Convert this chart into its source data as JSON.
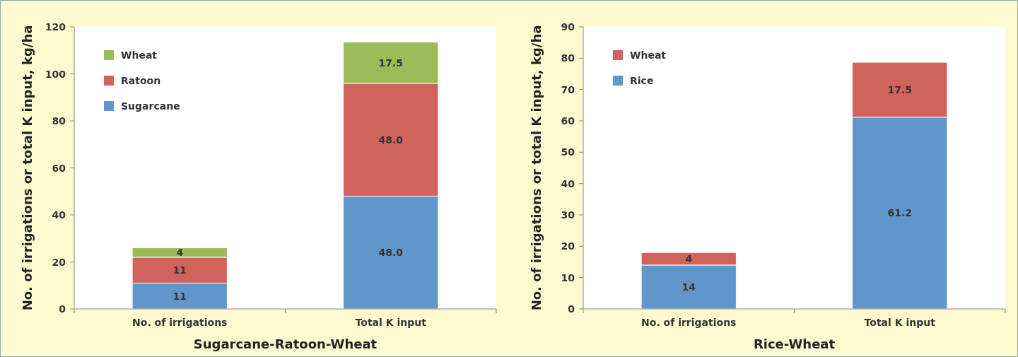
{
  "chart_data": [
    {
      "type": "bar",
      "stacked": true,
      "categories": [
        "No. of irrigations",
        "Total K input"
      ],
      "xlabel": "Sugarcane-Ratoon-Wheat",
      "ylabel": "No. of irrigations or total K input, kg/ha",
      "ylim": [
        0,
        120
      ],
      "yticks": [
        0,
        20,
        40,
        60,
        80,
        100,
        120
      ],
      "legend": "top left",
      "grid": false,
      "series": [
        {
          "name": "Sugarcane",
          "color": "#6096c9",
          "values": [
            11,
            48.0
          ],
          "value_labels": [
            "11",
            "48.0"
          ]
        },
        {
          "name": "Ratoon",
          "color": "#d0645c",
          "values": [
            11,
            48.0
          ],
          "value_labels": [
            "11",
            "48.0"
          ]
        },
        {
          "name": "Wheat",
          "color": "#9bbb59",
          "values": [
            4,
            17.5
          ],
          "value_labels": [
            "4",
            "17.5"
          ]
        }
      ]
    },
    {
      "type": "bar",
      "stacked": true,
      "categories": [
        "No. of irrigations",
        "Total K input"
      ],
      "xlabel": "Rice-Wheat",
      "ylabel": "No. of irrigations or total K input, kg/ha",
      "ylim": [
        0,
        90
      ],
      "yticks": [
        0,
        10,
        20,
        30,
        40,
        50,
        60,
        70,
        80,
        90
      ],
      "legend": "top left",
      "grid": false,
      "series": [
        {
          "name": "Rice",
          "color": "#6096c9",
          "values": [
            14,
            61.2
          ],
          "value_labels": [
            "14",
            "61.2"
          ]
        },
        {
          "name": "Wheat",
          "color": "#d0645c",
          "values": [
            4,
            17.5
          ],
          "value_labels": [
            "4",
            "17.5"
          ]
        }
      ]
    }
  ]
}
